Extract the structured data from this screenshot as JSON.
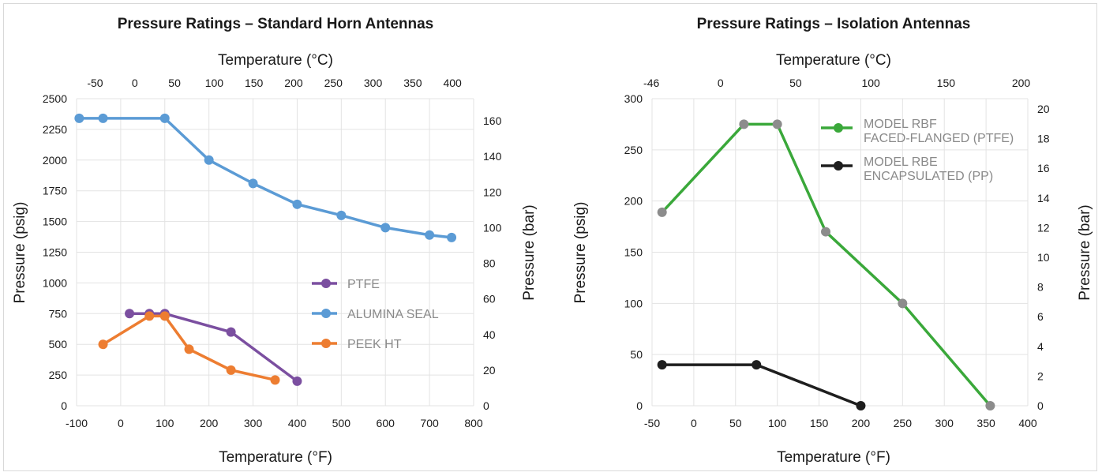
{
  "colors": {
    "ptfe": "#7b4fa0",
    "alumina": "#5b9bd5",
    "peek": "#ed7d31",
    "rbf": "#3aa83a",
    "rbe": "#1e1e1e",
    "rbf_marker": "#8c8c8c"
  },
  "chart_data": [
    {
      "type": "line",
      "title": "Pressure Ratings – Standard Horn Antennas",
      "xlabel": "Temperature (°F)",
      "ylabel": "Pressure (psig)",
      "x2label": "Temperature (°C)",
      "y2label": "Pressure (bar)",
      "xlim": [
        -100,
        800
      ],
      "ylim": [
        0,
        2500
      ],
      "xticks": [
        "-100",
        "0",
        "100",
        "200",
        "300",
        "400",
        "500",
        "600",
        "700",
        "800"
      ],
      "yticks": [
        "0",
        "250",
        "500",
        "750",
        "1000",
        "1250",
        "1500",
        "1750",
        "2000",
        "2250",
        "2500"
      ],
      "x2ticks": [
        {
          "label": "-50",
          "f": -58
        },
        {
          "label": "0",
          "f": 32
        },
        {
          "label": "50",
          "f": 122
        },
        {
          "label": "100",
          "f": 212
        },
        {
          "label": "150",
          "f": 302
        },
        {
          "label": "200",
          "f": 392
        },
        {
          "label": "250",
          "f": 482
        },
        {
          "label": "300",
          "f": 572
        },
        {
          "label": "350",
          "f": 662
        },
        {
          "label": "400",
          "f": 752
        }
      ],
      "y2ticks": [
        {
          "label": "0",
          "psi": 0
        },
        {
          "label": "20",
          "psi": 290
        },
        {
          "label": "40",
          "psi": 580
        },
        {
          "label": "60",
          "psi": 870
        },
        {
          "label": "80",
          "psi": 1160
        },
        {
          "label": "100",
          "psi": 1450
        },
        {
          "label": "120",
          "psi": 1740
        },
        {
          "label": "140",
          "psi": 2030
        },
        {
          "label": "160",
          "psi": 2320
        }
      ],
      "legend_position": "right",
      "series": [
        {
          "name": "PTFE",
          "color": "#7b4fa0",
          "x": [
            20,
            65,
            100,
            250,
            400
          ],
          "y": [
            750,
            750,
            750,
            600,
            200
          ]
        },
        {
          "name": "ALUMINA SEAL",
          "color": "#5b9bd5",
          "x": [
            -94,
            -40,
            100,
            200,
            300,
            400,
            500,
            600,
            700,
            750
          ],
          "y": [
            2340,
            2340,
            2340,
            2000,
            1810,
            1640,
            1550,
            1450,
            1390,
            1370
          ]
        },
        {
          "name": "PEEK HT",
          "color": "#ed7d31",
          "x": [
            -40,
            65,
            100,
            155,
            250,
            350
          ],
          "y": [
            500,
            730,
            730,
            460,
            290,
            210
          ]
        }
      ]
    },
    {
      "type": "line",
      "title": "Pressure Ratings – Isolation Antennas",
      "xlabel": "Temperature (°F)",
      "ylabel": "Pressure (psig)",
      "x2label": "Temperature (°C)",
      "y2label": "Pressure (bar)",
      "xlim": [
        -50,
        400
      ],
      "ylim": [
        0,
        300
      ],
      "xticks": [
        "-50",
        "0",
        "50",
        "100",
        "150",
        "200",
        "250",
        "300",
        "350",
        "400"
      ],
      "yticks": [
        "0",
        "50",
        "100",
        "150",
        "200",
        "250",
        "300"
      ],
      "x2ticks": [
        {
          "label": "-46",
          "f": -50.8
        },
        {
          "label": "0",
          "f": 32
        },
        {
          "label": "50",
          "f": 122
        },
        {
          "label": "100",
          "f": 212
        },
        {
          "label": "150",
          "f": 302
        },
        {
          "label": "200",
          "f": 392
        }
      ],
      "y2ticks": [
        {
          "label": "0",
          "psi": 0
        },
        {
          "label": "2",
          "psi": 29
        },
        {
          "label": "4",
          "psi": 58
        },
        {
          "label": "6",
          "psi": 87
        },
        {
          "label": "8",
          "psi": 116
        },
        {
          "label": "10",
          "psi": 145
        },
        {
          "label": "12",
          "psi": 174
        },
        {
          "label": "14",
          "psi": 203
        },
        {
          "label": "16",
          "psi": 232
        },
        {
          "label": "18",
          "psi": 261
        },
        {
          "label": "20",
          "psi": 290
        }
      ],
      "legend_position": "top-right",
      "series": [
        {
          "name": "MODEL RBF\nFACED-FLANGED (PTFE)",
          "color": "#3aa83a",
          "marker": "#8c8c8c",
          "x": [
            -38,
            60,
            100,
            158,
            250,
            355
          ],
          "y": [
            189,
            275,
            275,
            170,
            100,
            0
          ]
        },
        {
          "name": "MODEL RBE\nENCAPSULATED (PP)",
          "color": "#1e1e1e",
          "marker": "#1e1e1e",
          "x": [
            -38,
            75,
            200
          ],
          "y": [
            40,
            40,
            0
          ]
        }
      ]
    }
  ]
}
